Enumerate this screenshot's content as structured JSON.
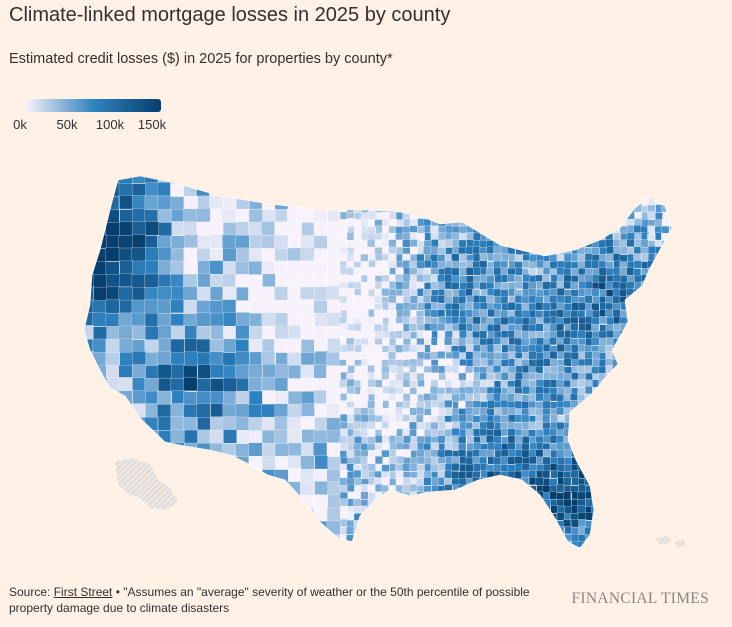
{
  "header": {
    "title": "Climate-linked mortgage losses in 2025 by county",
    "subtitle": "Estimated credit losses ($) in 2025 for properties by county*"
  },
  "legend": {
    "ticks": [
      "0k",
      "50k",
      "100k",
      "150k"
    ],
    "tick_values": [
      0,
      50000,
      100000,
      150000
    ],
    "colors": {
      "low": "#f7f2fb",
      "mid": "#2f82c0",
      "high": "#063f6e"
    }
  },
  "map": {
    "value_min": 0,
    "value_max": 150000,
    "pattern_fill": "no-data",
    "colors": {
      "ocean": "#fff1e5",
      "no_data": "#e4e0dc",
      "border": "#ffffff"
    }
  },
  "footer": {
    "source_prefix": "Source: ",
    "source_link": "First Street",
    "source_note": " • \"Assumes an \"average\" severity of weather or the 50th percentile of possible property damage due to climate disasters",
    "brand": "FINANCIAL TIMES"
  }
}
